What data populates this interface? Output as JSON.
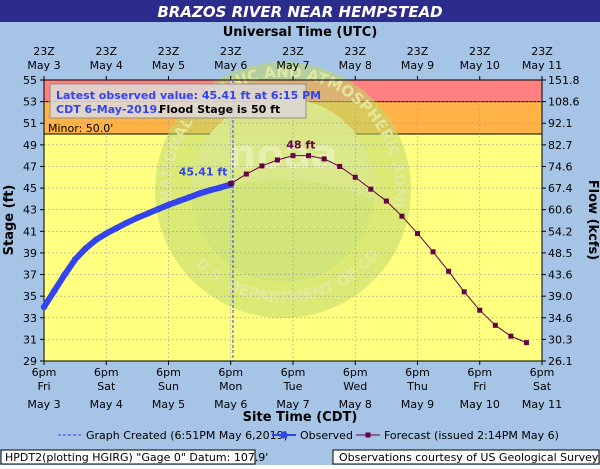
{
  "chart_data": {
    "type": "line",
    "title": "BRAZOS RIVER NEAR HEMPSTEAD",
    "top_axis_title": "Universal Time (UTC)",
    "bottom_axis_title": "Site Time (CDT)",
    "ylabel": "Stage (ft)",
    "ylabel_right": "Flow (kcfs)",
    "ylim": [
      29,
      55
    ],
    "xlim_hours_from_may3_6pm_cdt": [
      0,
      192
    ],
    "y_ticks": [
      29,
      31,
      33,
      35,
      37,
      39,
      41,
      43,
      45,
      47,
      49,
      51,
      53,
      55
    ],
    "right_ticks": [
      {
        "stage": 30.7,
        "label": "30.3"
      },
      {
        "stage": 55,
        "label": "151.8"
      },
      {
        "stage": 53,
        "label": "108.6"
      },
      {
        "stage": 51,
        "label": "92.1"
      },
      {
        "stage": 49,
        "label": "82.7"
      },
      {
        "stage": 47,
        "label": "74.6"
      },
      {
        "stage": 45,
        "label": "67.4"
      },
      {
        "stage": 43,
        "label": "60.6"
      },
      {
        "stage": 41,
        "label": "54.2"
      },
      {
        "stage": 39,
        "label": "48.5"
      },
      {
        "stage": 37,
        "label": "43.6"
      },
      {
        "stage": 35,
        "label": "39.0"
      },
      {
        "stage": 33,
        "label": "34.6"
      },
      {
        "stage": 31,
        "label": "30.3"
      },
      {
        "stage": 29,
        "label": "26.1"
      }
    ],
    "top_ticks": [
      {
        "l1": "23Z",
        "l2": "May 3"
      },
      {
        "l1": "23Z",
        "l2": "May 4"
      },
      {
        "l1": "23Z",
        "l2": "May 5"
      },
      {
        "l1": "23Z",
        "l2": "May 6"
      },
      {
        "l1": "23Z",
        "l2": "May 7"
      },
      {
        "l1": "23Z",
        "l2": "May 8"
      },
      {
        "l1": "23Z",
        "l2": "May 9"
      },
      {
        "l1": "23Z",
        "l2": "May 10"
      },
      {
        "l1": "23Z",
        "l2": "May 11"
      }
    ],
    "bottom_ticks": [
      {
        "l1": "6pm",
        "l2": "Fri",
        "l3": "May 3"
      },
      {
        "l1": "6pm",
        "l2": "Sat",
        "l3": "May 4"
      },
      {
        "l1": "6pm",
        "l2": "Sun",
        "l3": "May 5"
      },
      {
        "l1": "6pm",
        "l2": "Mon",
        "l3": "May 6"
      },
      {
        "l1": "6pm",
        "l2": "Tue",
        "l3": "May 7"
      },
      {
        "l1": "6pm",
        "l2": "Wed",
        "l3": "May 8"
      },
      {
        "l1": "6pm",
        "l2": "Thu",
        "l3": "May 9"
      },
      {
        "l1": "6pm",
        "l2": "Fri",
        "l3": "May 10"
      },
      {
        "l1": "6pm",
        "l2": "Sat",
        "l3": "May 11"
      }
    ],
    "flood_bands": [
      {
        "name": "moderate",
        "from": 53,
        "to": 55,
        "color": "#ff8080"
      },
      {
        "name": "flood",
        "from": 50,
        "to": 53,
        "color": "#ffb347"
      },
      {
        "name": "action",
        "from": 29,
        "to": 50,
        "color": "#ffff80"
      }
    ],
    "minor_label": "Minor: 50.0'",
    "minor_stage": 50,
    "info_box": {
      "line1": "Latest observed value: 45.41 ft at 6:15 PM",
      "line2a": "CDT 6-May-2019.",
      "line2b": "Flood Stage is 50 ft"
    },
    "observed_label": "45.41 ft",
    "forecast_peak_label": "48 ft",
    "created_hour": 72.85,
    "series": [
      {
        "name": "Observed",
        "color": "#3344ee",
        "x": [
          0,
          4,
          8,
          12,
          16,
          20,
          24,
          28,
          32,
          36,
          40,
          44,
          48,
          52,
          56,
          60,
          64,
          68,
          72,
          72.25
        ],
        "y": [
          34.0,
          35.5,
          37.0,
          38.4,
          39.4,
          40.2,
          40.8,
          41.3,
          41.8,
          42.25,
          42.65,
          43.05,
          43.45,
          43.8,
          44.15,
          44.5,
          44.8,
          45.05,
          45.33,
          45.41
        ]
      },
      {
        "name": "Forecast (issued 2:14PM May 6)",
        "color": "#660044",
        "x": [
          72,
          78,
          84,
          90,
          96,
          102,
          108,
          114,
          120,
          126,
          132,
          138,
          144,
          150,
          156,
          162,
          168,
          174,
          180,
          186
        ],
        "y": [
          45.41,
          46.3,
          47.05,
          47.6,
          48.0,
          48.0,
          47.7,
          47.0,
          46.0,
          44.9,
          43.8,
          42.4,
          40.8,
          39.1,
          37.3,
          35.4,
          33.7,
          32.3,
          31.3,
          30.7
        ]
      }
    ]
  },
  "legend": {
    "created": "Graph Created (6:51PM May 6,2019)",
    "observed": "Observed",
    "forecast": "Forecast (issued 2:14PM May 6)"
  },
  "footer": {
    "left": "HPDT2(plotting HGIRG) \"Gage 0\" Datum: 107.9'",
    "right": "Observations courtesy of US Geological Survey"
  },
  "watermark": {
    "ring_text": "NATIONAL OCEANIC AND ATMOSPHERIC ADMINISTRATION",
    "ring_text_bottom": "U.S. DEPARTMENT OF COMMERCE",
    "center_text": "noaa"
  },
  "colors": {
    "title_bg": "#2c2c8c",
    "frame_bg": "#a6c4e6",
    "observed": "#3344ee",
    "forecast": "#660044"
  }
}
